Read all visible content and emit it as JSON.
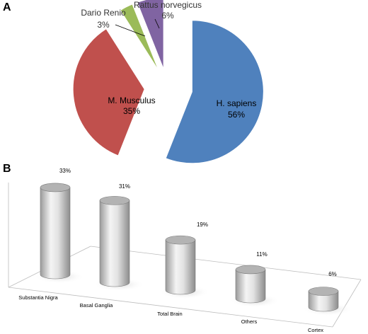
{
  "panels": {
    "a_letter": "A",
    "b_letter": "B"
  },
  "chart_data": [
    {
      "type": "pie",
      "categories": [
        "H. sapiens",
        "M. Musculus",
        "Dario Renio",
        "Rattus norvegicus"
      ],
      "values": [
        56,
        35,
        3,
        6
      ],
      "value_labels": [
        "56%",
        "35%",
        "3%",
        "6%"
      ],
      "colors": [
        "#4f81bd",
        "#c0504d",
        "#9bbb59",
        "#8064a2"
      ],
      "exploded": true,
      "title": ""
    },
    {
      "type": "bar",
      "style": "3d-cylinder",
      "categories": [
        "Substantia Nigra",
        "Basal Ganglia",
        "Total Brain",
        "Others",
        "Cortex"
      ],
      "values": [
        33,
        31,
        19,
        11,
        6
      ],
      "value_labels": [
        "33%",
        "31%",
        "19%",
        "11%",
        "6%"
      ],
      "bar_color": "#c8c8c8",
      "title": "",
      "xlabel": "",
      "ylabel": "",
      "ylim": [
        0,
        33
      ]
    }
  ]
}
